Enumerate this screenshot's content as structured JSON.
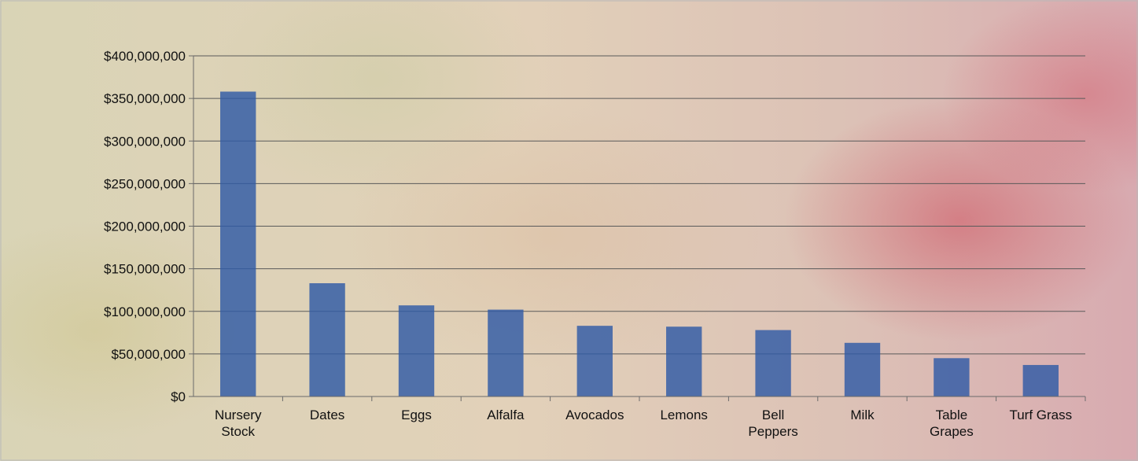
{
  "chart_data": {
    "type": "bar",
    "title": "",
    "xlabel": "",
    "ylabel": "",
    "categories": [
      [
        "Nursery",
        "Stock"
      ],
      [
        "Dates"
      ],
      [
        "Eggs"
      ],
      [
        "Alfalfa"
      ],
      [
        "Avocados"
      ],
      [
        "Lemons"
      ],
      [
        "Bell",
        "Peppers"
      ],
      [
        "Milk"
      ],
      [
        "Table",
        "Grapes"
      ],
      [
        "Turf Grass"
      ]
    ],
    "values": [
      358000000,
      133000000,
      107000000,
      102000000,
      83000000,
      82000000,
      78000000,
      63000000,
      45000000,
      37000000
    ],
    "ylim": [
      0,
      400000000
    ],
    "yticks": [
      {
        "value": 0,
        "label": "$0"
      },
      {
        "value": 50000000,
        "label": "$50,000,000"
      },
      {
        "value": 100000000,
        "label": "$100,000,000"
      },
      {
        "value": 150000000,
        "label": "$150,000,000"
      },
      {
        "value": 200000000,
        "label": "$200,000,000"
      },
      {
        "value": 250000000,
        "label": "$250,000,000"
      },
      {
        "value": 300000000,
        "label": "$300,000,000"
      },
      {
        "value": 350000000,
        "label": "$350,000,000"
      },
      {
        "value": 400000000,
        "label": "$400,000,000"
      }
    ],
    "grid": true,
    "legend": "none",
    "bar_color": "#2f5aa6",
    "gridline_color": "#5a5a5a"
  }
}
